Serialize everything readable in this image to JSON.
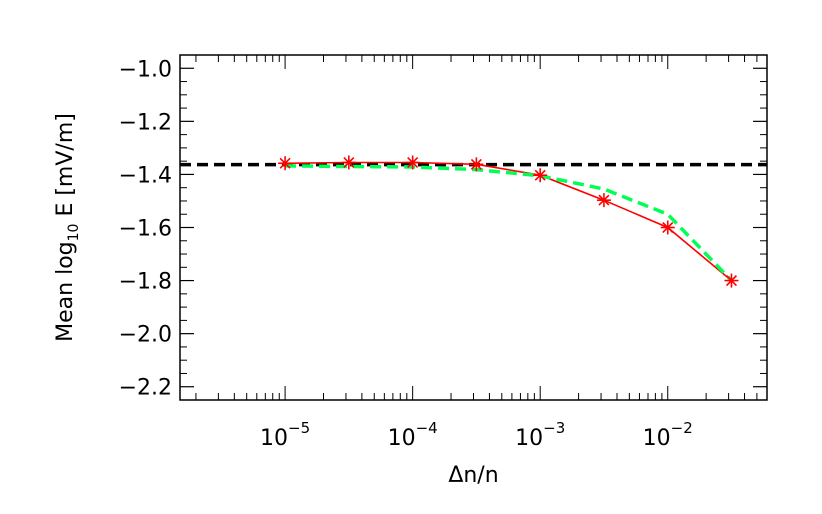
{
  "chart_data": {
    "type": "line",
    "xscale": "log",
    "xlim": [
      1.5e-06,
      0.06
    ],
    "ylim": [
      -2.25,
      -0.95
    ],
    "xlabel": "Δn/n",
    "ylabel_parts": {
      "main": "Mean log",
      "sub": "10",
      "rest": " E  [mV/m]"
    },
    "x_ticks": [
      {
        "value": 1e-05,
        "base": "10",
        "exp": "−5"
      },
      {
        "value": 0.0001,
        "base": "10",
        "exp": "−4"
      },
      {
        "value": 0.001,
        "base": "10",
        "exp": "−3"
      },
      {
        "value": 0.01,
        "base": "10",
        "exp": "−2"
      }
    ],
    "y_ticks": [
      {
        "value": -1.0,
        "label": "−1.0"
      },
      {
        "value": -1.2,
        "label": "−1.2"
      },
      {
        "value": -1.4,
        "label": "−1.4"
      },
      {
        "value": -1.6,
        "label": "−1.6"
      },
      {
        "value": -1.8,
        "label": "−1.8"
      },
      {
        "value": -2.0,
        "label": "−2.0"
      },
      {
        "value": -2.2,
        "label": "−2.2"
      }
    ],
    "series": [
      {
        "style": "solid-red-star",
        "color": "#ff0000",
        "x": [
          1e-05,
          3.16e-05,
          0.0001,
          0.000316,
          0.001,
          0.00316,
          0.01,
          0.0316
        ],
        "y": [
          -1.358,
          -1.355,
          -1.355,
          -1.362,
          -1.403,
          -1.497,
          -1.6,
          -1.8
        ]
      },
      {
        "style": "dashed-green",
        "color": "#00ff55",
        "x": [
          1e-05,
          3.16e-05,
          0.0001,
          0.000316,
          0.001,
          0.00316,
          0.01,
          0.0316
        ],
        "y": [
          -1.368,
          -1.37,
          -1.372,
          -1.382,
          -1.405,
          -1.455,
          -1.55,
          -1.8
        ]
      }
    ],
    "reference_line": {
      "y": -1.363,
      "style": "dashed",
      "color": "#000000"
    },
    "grid": false,
    "minor_ticks": true
  }
}
